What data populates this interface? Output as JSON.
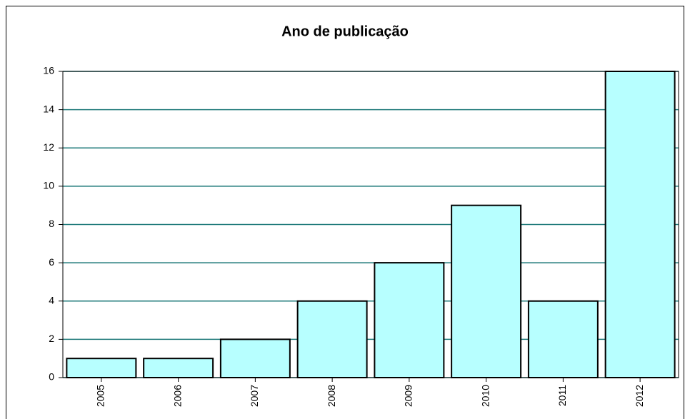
{
  "chart_data": {
    "type": "bar",
    "title": "Ano de publicação",
    "categories": [
      "2005",
      "2006",
      "2007",
      "2008",
      "2009",
      "2010",
      "2011",
      "2012"
    ],
    "values": [
      1,
      1,
      2,
      4,
      6,
      9,
      4,
      16
    ],
    "color": "#b7ffff",
    "ylim": [
      0,
      16
    ],
    "yticks": [
      0,
      2,
      4,
      6,
      8,
      10,
      12,
      14,
      16
    ],
    "grid": true,
    "grid_color": "#1f7a7a"
  }
}
